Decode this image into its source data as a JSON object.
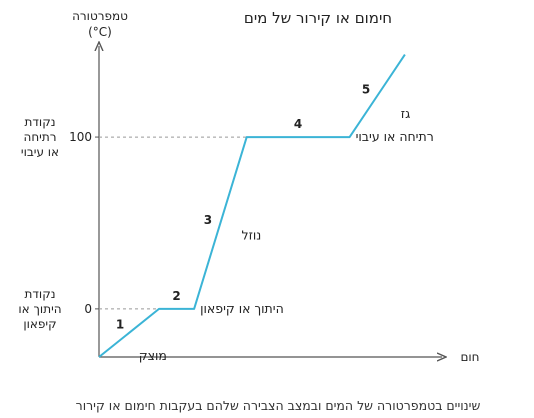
{
  "chart_data": {
    "type": "line",
    "title": "חימום או קירור של מים",
    "caption": "שינויים בטמפרטורה של המים ובמצב הצבירה שלהם בעקבות חימום או קירור",
    "xlabel": "חום",
    "ylabel": "טמפרטורה",
    "yunit": "(°C)",
    "ylim": [
      -28,
      153
    ],
    "xlim": [
      0,
      100
    ],
    "yticks": [
      {
        "value": 0,
        "label": "0"
      },
      {
        "value": 100,
        "label": "100"
      }
    ],
    "point_labels": [
      {
        "value": 0,
        "lines": [
          "נקודת",
          "היתוך או",
          "קיפאון"
        ]
      },
      {
        "value": 100,
        "lines": [
          "נקודת",
          "רתיחה",
          "או עיבוי"
        ]
      }
    ],
    "line_color": "#3bb4d6",
    "series": [
      {
        "points": [
          {
            "x": 0,
            "y": -28
          },
          {
            "x": 17.6,
            "y": 0
          },
          {
            "x": 27.9,
            "y": 0
          },
          {
            "x": 43.3,
            "y": 100
          },
          {
            "x": 73.5,
            "y": 100
          },
          {
            "x": 89.7,
            "y": 148
          }
        ]
      }
    ],
    "segments": [
      {
        "number": "1",
        "phase": "מוצק",
        "from": 0,
        "to": 1
      },
      {
        "number": "2",
        "phase": "היתוך או קיפאון",
        "from": 1,
        "to": 2
      },
      {
        "number": "3",
        "phase": "נוזל",
        "from": 2,
        "to": 3
      },
      {
        "number": "4",
        "phase": "רתיחה או עיבוי",
        "from": 3,
        "to": 4
      },
      {
        "number": "5",
        "phase": "גז",
        "from": 4,
        "to": 5
      }
    ]
  }
}
